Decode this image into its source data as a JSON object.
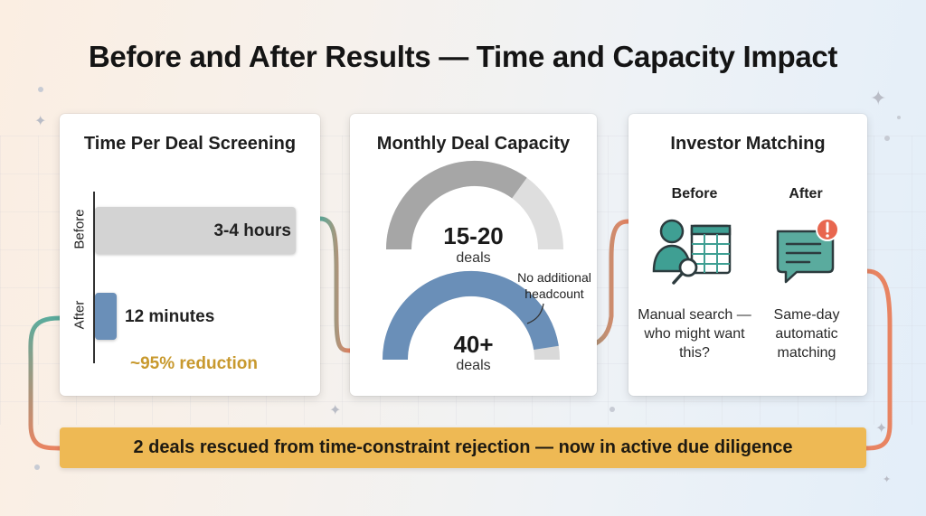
{
  "title": "Before and After Results — Time and Capacity Impact",
  "time_card": {
    "title": "Time Per Deal Screening",
    "before_label": "Before",
    "after_label": "After",
    "before_value": "3-4 hours",
    "after_value": "12 minutes",
    "reduction": "~95% reduction",
    "before_bar_fraction": 1.0,
    "after_bar_fraction": 0.1,
    "colors": {
      "before": "#d3d3d3",
      "after": "#6a8fb8",
      "reduction": "#c8992e"
    }
  },
  "capacity_card": {
    "title": "Monthly Deal Capacity",
    "before_value": "15-20",
    "before_unit": "deals",
    "before_gauge_fraction": 0.7,
    "after_value": "40+",
    "after_unit": "deals",
    "after_gauge_fraction": 0.95,
    "note": "No additional headcount",
    "colors": {
      "before_fill": "#a6a6a6",
      "before_track": "#dedede",
      "after_fill": "#6a8fb8",
      "after_track": "#d9d9d9"
    }
  },
  "matching_card": {
    "title": "Investor Matching",
    "before_label": "Before",
    "after_label": "After",
    "before_text": "Manual search — who might want this?",
    "after_text": "Same-day automatic matching",
    "before_icon": "person-spreadsheet-search-icon",
    "after_icon": "chat-alert-icon",
    "colors": {
      "icon_teal": "#3f9f93",
      "alert_red": "#e8664f"
    }
  },
  "banner": {
    "text": "2 deals rescued from time-constraint rejection — now in active due diligence",
    "color": "#eeb954"
  }
}
